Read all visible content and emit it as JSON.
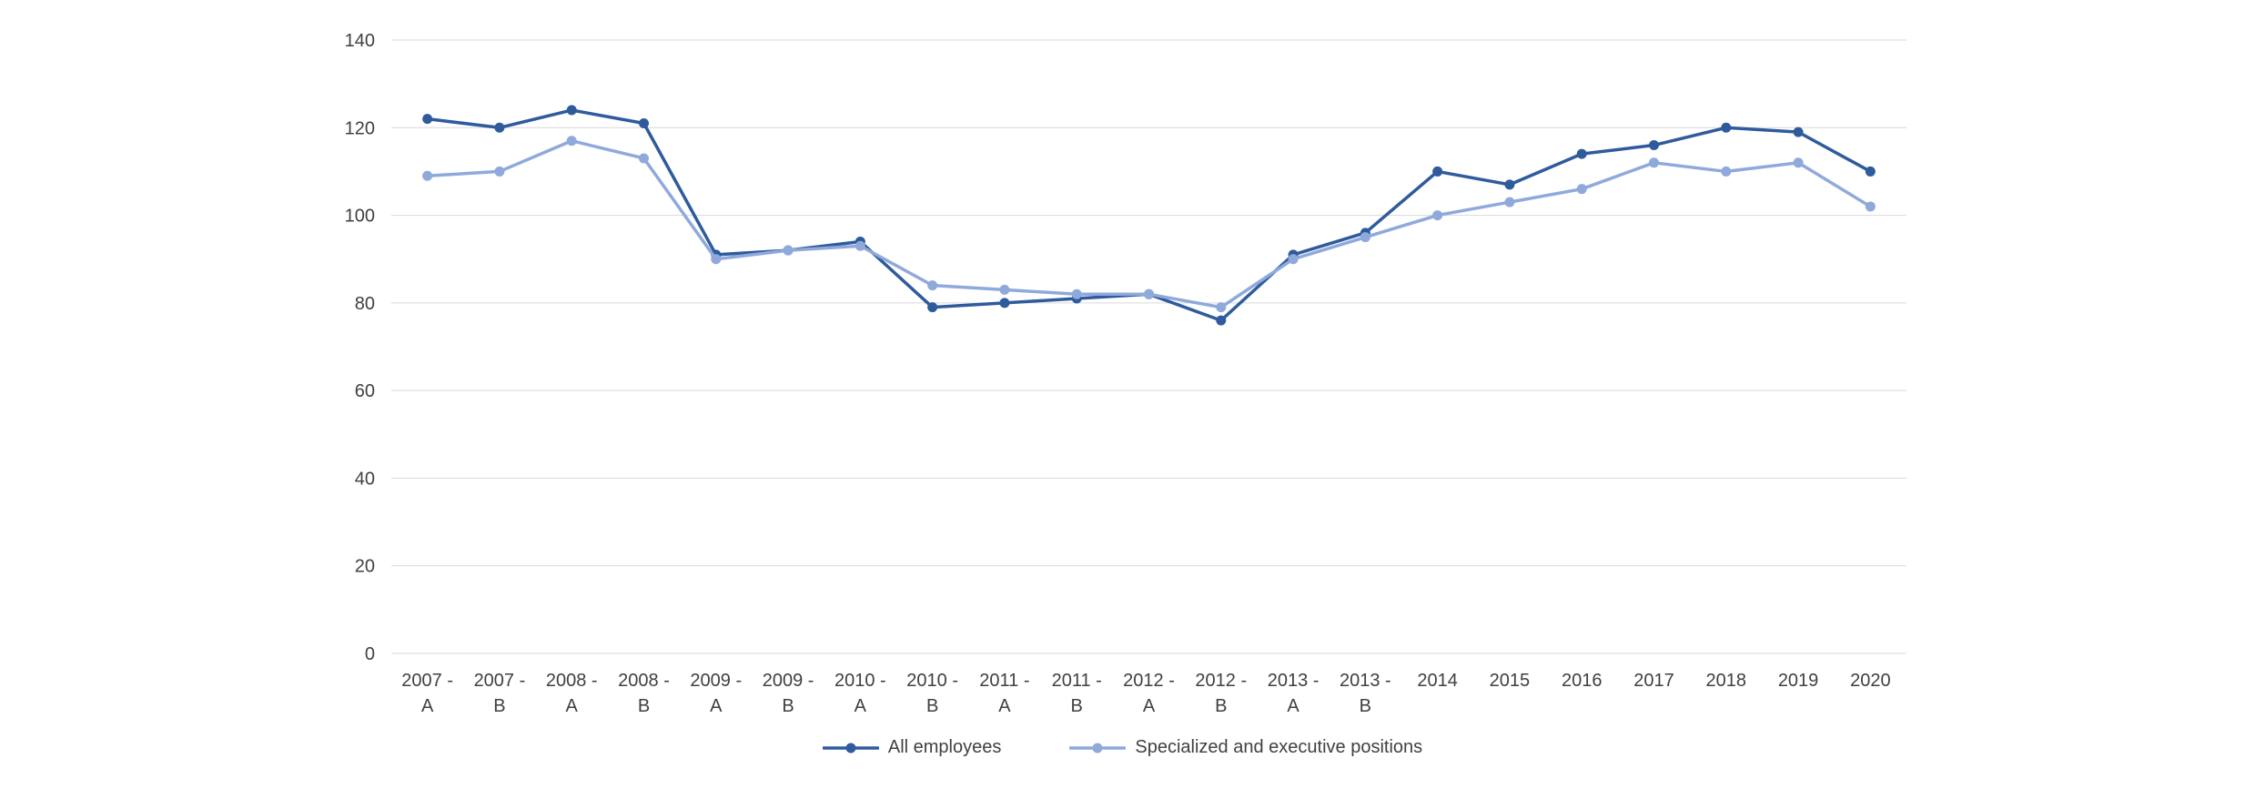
{
  "chart_data": {
    "type": "line",
    "title": "",
    "xlabel": "",
    "ylabel": "",
    "ylim": [
      0,
      140
    ],
    "ytick_step": 20,
    "yticks": [
      0,
      20,
      40,
      60,
      80,
      100,
      120,
      140
    ],
    "grid": true,
    "legend_position": "bottom",
    "gridline_color": "#D9D9D9",
    "axis_text_color": "#404040",
    "background_color": "#FFFFFF",
    "categories": [
      {
        "label": "2007 -",
        "sub": "A"
      },
      {
        "label": "2007 -",
        "sub": "B"
      },
      {
        "label": "2008 -",
        "sub": "A"
      },
      {
        "label": "2008 -",
        "sub": "B"
      },
      {
        "label": "2009 -",
        "sub": "A"
      },
      {
        "label": "2009 -",
        "sub": "B"
      },
      {
        "label": "2010 -",
        "sub": "A"
      },
      {
        "label": "2010 -",
        "sub": "B"
      },
      {
        "label": "2011 -",
        "sub": "A"
      },
      {
        "label": "2011 -",
        "sub": "B"
      },
      {
        "label": "2012 -",
        "sub": "A"
      },
      {
        "label": "2012 -",
        "sub": "B"
      },
      {
        "label": "2013 -",
        "sub": "A"
      },
      {
        "label": "2013 -",
        "sub": "B"
      },
      {
        "label": "2014",
        "sub": ""
      },
      {
        "label": "2015",
        "sub": ""
      },
      {
        "label": "2016",
        "sub": ""
      },
      {
        "label": "2017",
        "sub": ""
      },
      {
        "label": "2018",
        "sub": ""
      },
      {
        "label": "2019",
        "sub": ""
      },
      {
        "label": "2020",
        "sub": ""
      }
    ],
    "series": [
      {
        "name": "All employees",
        "color": "#2F5B9D",
        "values": [
          122,
          120,
          124,
          121,
          91,
          92,
          94,
          79,
          80,
          81,
          82,
          76,
          91,
          96,
          110,
          107,
          114,
          116,
          120,
          119,
          110
        ]
      },
      {
        "name": "Specialized and executive positions",
        "color": "#8FA9DB",
        "values": [
          109,
          110,
          117,
          113,
          90,
          92,
          93,
          84,
          83,
          82,
          82,
          79,
          90,
          95,
          100,
          103,
          106,
          112,
          110,
          112,
          102
        ]
      }
    ]
  }
}
